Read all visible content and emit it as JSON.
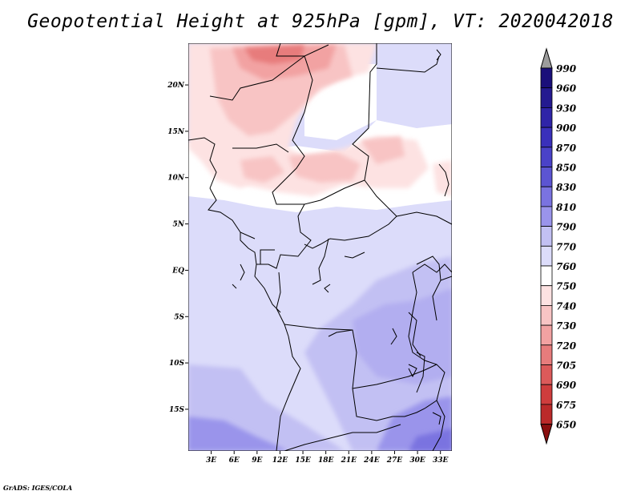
{
  "title": "Geopotential Height at 925hPa [gpm], VT: 2020042018",
  "credit": "GrADS: IGES/COLA",
  "map": {
    "lat_labels": [
      "20N",
      "15N",
      "10N",
      "5N",
      "EQ",
      "5S",
      "10S",
      "15S"
    ],
    "lon_labels": [
      "3E",
      "6E",
      "9E",
      "12E",
      "15E",
      "18E",
      "21E",
      "24E",
      "27E",
      "30E",
      "33E"
    ],
    "lon_range": [
      0,
      34.5
    ],
    "lat_range": [
      -19.5,
      24.5
    ],
    "field": "Geopotential Height at 925hPa",
    "units": "gpm"
  },
  "colorbar": {
    "levels": [
      {
        "label": "990",
        "color": "#1a0f7a"
      },
      {
        "label": "960",
        "color": "#241a90"
      },
      {
        "label": "930",
        "color": "#2f24a8"
      },
      {
        "label": "900",
        "color": "#3a30bb"
      },
      {
        "label": "870",
        "color": "#4a42c8"
      },
      {
        "label": "850",
        "color": "#5c55d2"
      },
      {
        "label": "830",
        "color": "#7a73e0"
      },
      {
        "label": "810",
        "color": "#9a94eb"
      },
      {
        "label": "790",
        "color": "#c2c0f3"
      },
      {
        "label": "770",
        "color": "#dcdcfa"
      },
      {
        "label": "760",
        "color": "#ffffff"
      },
      {
        "label": "750",
        "color": "#fde2e2"
      },
      {
        "label": "740",
        "color": "#f8c4c4"
      },
      {
        "label": "730",
        "color": "#f2a2a2"
      },
      {
        "label": "720",
        "color": "#e77c7c"
      },
      {
        "label": "705",
        "color": "#dc5a5a"
      },
      {
        "label": "690",
        "color": "#cf3d3d"
      },
      {
        "label": "675",
        "color": "#bb2a2a"
      },
      {
        "label": "650",
        "color": "#a01818"
      }
    ],
    "top_arrow_color": "#9c9c9c",
    "bottom_arrow_color": "#8a0f0f"
  }
}
